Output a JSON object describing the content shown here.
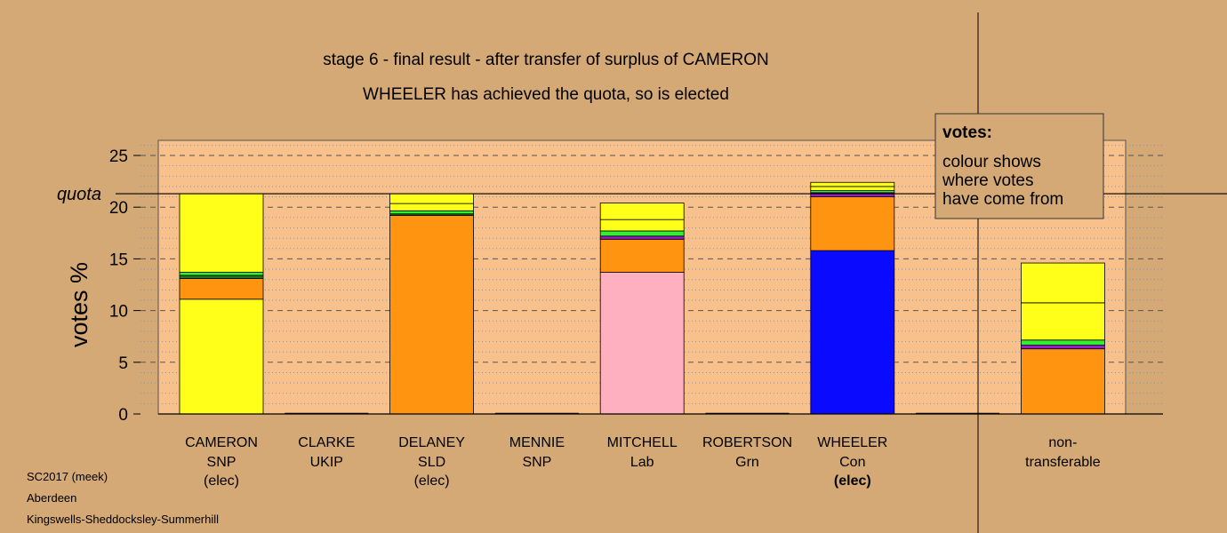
{
  "chart_data": {
    "type": "bar",
    "stacked": true,
    "title": "stage 6 - final result - after transfer of surplus of CAMERON",
    "subtitle": "WHEELER has achieved the quota, so is elected",
    "ylabel": "votes %",
    "ylim": [
      0,
      26.5
    ],
    "yticks": [
      0,
      5,
      10,
      15,
      20,
      25
    ],
    "quota": 21.3,
    "quota_label": "quota",
    "categories": [
      {
        "name": "CAMERON",
        "party": "SNP",
        "status": "(elec)",
        "status_bold": false
      },
      {
        "name": "CLARKE",
        "party": "UKIP",
        "status": "",
        "status_bold": false
      },
      {
        "name": "DELANEY",
        "party": "SLD",
        "status": "(elec)",
        "status_bold": false
      },
      {
        "name": "MENNIE",
        "party": "SNP",
        "status": "",
        "status_bold": false
      },
      {
        "name": "MITCHELL",
        "party": "Lab",
        "status": "",
        "status_bold": false
      },
      {
        "name": "ROBERTSON",
        "party": "Grn",
        "status": "",
        "status_bold": false
      },
      {
        "name": "WHEELER",
        "party": "Con",
        "status": "(elec)",
        "status_bold": true
      },
      {
        "name": "",
        "party": "",
        "status": "",
        "status_bold": false
      },
      {
        "name": "non-",
        "party": "transferable",
        "status": "",
        "status_bold": false
      }
    ],
    "stacks": [
      [
        {
          "value": 11.1,
          "color": "#ffff1a"
        },
        {
          "value": 2.0,
          "color": "#ff9410"
        },
        {
          "value": 0.3,
          "color": "#1a7a1a"
        },
        {
          "value": 0.3,
          "color": "#33ee33"
        },
        {
          "value": 7.6,
          "color": "#ffff1a"
        }
      ],
      [],
      [
        {
          "value": 19.2,
          "color": "#ff9410"
        },
        {
          "value": 0.15,
          "color": "#1a7a1a"
        },
        {
          "value": 0.3,
          "color": "#33ee33"
        },
        {
          "value": 0.7,
          "color": "#ffff1a"
        },
        {
          "value": 0.95,
          "color": "#ffff1a"
        }
      ],
      [],
      [
        {
          "value": 13.7,
          "color": "#ffb0c0"
        },
        {
          "value": 3.2,
          "color": "#ff9410"
        },
        {
          "value": 0.3,
          "color": "#9a1ad0"
        },
        {
          "value": 0.5,
          "color": "#33ee33"
        },
        {
          "value": 1.1,
          "color": "#ffff1a"
        },
        {
          "value": 1.6,
          "color": "#ffff1a"
        }
      ],
      [],
      [
        {
          "value": 15.8,
          "color": "#0a0aff"
        },
        {
          "value": 5.2,
          "color": "#ff9410"
        },
        {
          "value": 0.4,
          "color": "#9a1ad0"
        },
        {
          "value": 0.2,
          "color": "#33ee33"
        },
        {
          "value": 0.4,
          "color": "#ffff1a"
        },
        {
          "value": 0.4,
          "color": "#ffff1a"
        }
      ],
      [],
      [
        {
          "value": 6.3,
          "color": "#ff9410"
        },
        {
          "value": 0.35,
          "color": "#9a1ad0"
        },
        {
          "value": 0.5,
          "color": "#33ee33"
        },
        {
          "value": 3.6,
          "color": "#ffff1a"
        },
        {
          "value": 3.85,
          "color": "#ffff1a"
        }
      ]
    ],
    "grid": true,
    "legend": {
      "placement": "top-right",
      "heading": "votes:",
      "lines": [
        "colour shows",
        "where votes",
        "have come from"
      ]
    }
  },
  "footer": {
    "line1": "SC2017 (meek)",
    "line2": "Aberdeen",
    "line3": "Kingswells-Sheddocksley-Summerhill"
  },
  "colors": {
    "background": "#d4a976",
    "plot_panel": "#f8c08a",
    "legend_box": "#d4a976"
  }
}
